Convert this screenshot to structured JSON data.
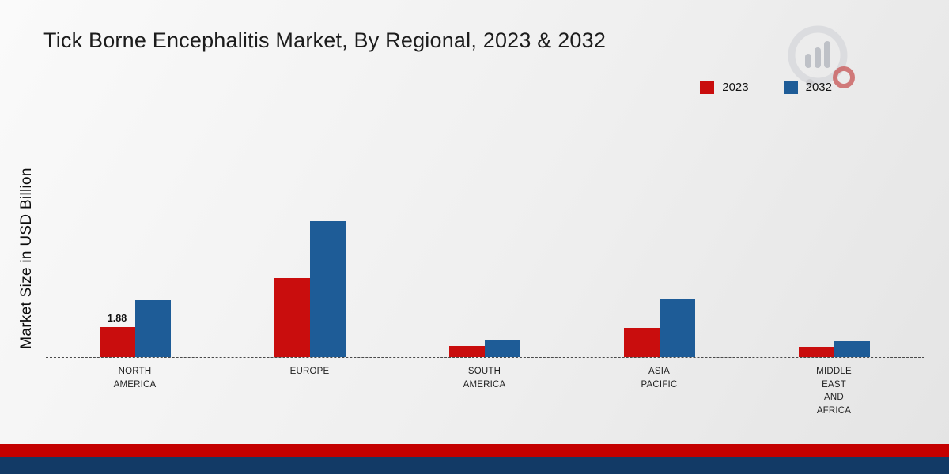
{
  "title": "Tick Borne Encephalitis Market, By Regional, 2023 & 2032",
  "ylabel": "Market Size in USD Billion",
  "legend": [
    {
      "label": "2023",
      "color": "#c90d0d"
    },
    {
      "label": "2032",
      "color": "#1e5c97"
    }
  ],
  "branding": {
    "logo": "market-research-future-logo"
  },
  "footer": {
    "red_stripe_color": "#c40000",
    "blue_stripe_color": "#123a66"
  },
  "chart_data": {
    "type": "bar",
    "title": "Tick Borne Encephalitis Market, By Regional, 2023 & 2032",
    "xlabel": "",
    "ylabel": "Market Size in USD Billion",
    "ylim": [
      0,
      9
    ],
    "grid": false,
    "legend_position": "top-right",
    "baseline_style": "dashed",
    "categories": [
      "North America",
      "Europe",
      "South America",
      "Asia Pacific",
      "Middle East and Africa"
    ],
    "category_labels": [
      [
        "NORTH",
        "AMERICA"
      ],
      [
        "EUROPE"
      ],
      [
        "SOUTH",
        "AMERICA"
      ],
      [
        "ASIA",
        "PACIFIC"
      ],
      [
        "MIDDLE",
        "EAST",
        "AND",
        "AFRICA"
      ]
    ],
    "series": [
      {
        "name": "2023",
        "color": "#c90d0d",
        "values": [
          1.88,
          5.0,
          0.7,
          1.85,
          0.65
        ]
      },
      {
        "name": "2032",
        "color": "#1e5c97",
        "values": [
          3.6,
          8.6,
          1.05,
          3.65,
          1.0
        ]
      }
    ],
    "annotations": [
      {
        "series": "2023",
        "category": "North America",
        "text": "1.88"
      }
    ]
  }
}
